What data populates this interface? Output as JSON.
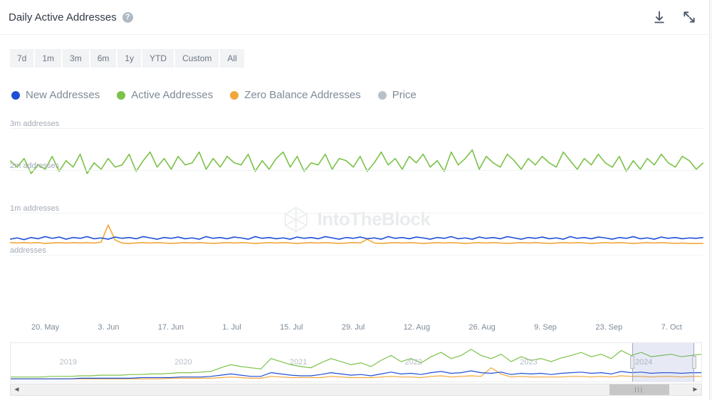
{
  "header": {
    "title": "Daily Active Addresses",
    "help_glyph": "?"
  },
  "ranges": [
    "7d",
    "1m",
    "3m",
    "6m",
    "1y",
    "YTD",
    "Custom",
    "All"
  ],
  "legend": [
    {
      "label": "New Addresses",
      "color": "#1f4fd6"
    },
    {
      "label": "Active Addresses",
      "color": "#7cc24a"
    },
    {
      "label": "Zero Balance Addresses",
      "color": "#f2a73b"
    },
    {
      "label": "Price",
      "color": "#b9c0c8"
    }
  ],
  "watermark": "IntoTheBlock",
  "chart": {
    "type": "line",
    "ylim": [
      0,
      3000000
    ],
    "y_ticks": [
      {
        "v": 0,
        "label": "addresses"
      },
      {
        "v": 1000000,
        "label": "1m addresses"
      },
      {
        "v": 2000000,
        "label": "2m addresses"
      },
      {
        "v": 3000000,
        "label": "3m addresses"
      }
    ],
    "x_labels": [
      "20. May",
      "3. Jun",
      "17. Jun",
      "1. Jul",
      "15. Jul",
      "29. Jul",
      "12. Aug",
      "26. Aug",
      "9. Sep",
      "23. Sep",
      "7. Oct"
    ],
    "background_color": "#ffffff",
    "grid_color": "#f0f2f4",
    "label_color": "#a3abb5",
    "xlabel_color": "#7d8a97",
    "line_width": 1.6,
    "series": {
      "active": {
        "color": "#7cc24a",
        "values": [
          2.25,
          2.1,
          2.3,
          1.95,
          2.15,
          2.05,
          2.35,
          2.0,
          2.25,
          2.1,
          2.4,
          1.95,
          2.2,
          2.05,
          2.3,
          2.1,
          2.15,
          2.4,
          2.0,
          2.25,
          2.45,
          2.1,
          2.3,
          2.05,
          2.35,
          2.15,
          2.2,
          2.45,
          2.05,
          2.3,
          2.1,
          2.35,
          2.2,
          2.15,
          2.4,
          2.0,
          2.25,
          2.05,
          2.3,
          2.45,
          2.1,
          2.35,
          2.0,
          2.2,
          2.15,
          2.4,
          2.05,
          2.3,
          2.25,
          2.1,
          2.35,
          2.0,
          2.2,
          2.45,
          2.15,
          2.3,
          2.05,
          2.35,
          2.2,
          2.4,
          2.1,
          2.25,
          2.0,
          2.45,
          2.15,
          2.3,
          2.5,
          2.05,
          2.35,
          2.2,
          2.1,
          2.4,
          2.25,
          2.05,
          2.3,
          2.15,
          2.35,
          2.2,
          2.1,
          2.45,
          2.25,
          2.05,
          2.3,
          2.15,
          2.4,
          2.2,
          2.1,
          2.35,
          2.0,
          2.25,
          2.05,
          2.3,
          2.15,
          2.4,
          2.2,
          2.1,
          2.35,
          2.25,
          2.05,
          2.2
        ]
      },
      "new": {
        "color": "#1f4fd6",
        "values": [
          0.42,
          0.45,
          0.41,
          0.46,
          0.43,
          0.48,
          0.44,
          0.47,
          0.42,
          0.46,
          0.44,
          0.48,
          0.43,
          0.45,
          0.42,
          0.47,
          0.44,
          0.46,
          0.43,
          0.48,
          0.45,
          0.42,
          0.46,
          0.44,
          0.47,
          0.43,
          0.45,
          0.42,
          0.48,
          0.44,
          0.46,
          0.43,
          0.47,
          0.45,
          0.42,
          0.48,
          0.44,
          0.46,
          0.43,
          0.45,
          0.42,
          0.47,
          0.44,
          0.46,
          0.43,
          0.48,
          0.45,
          0.42,
          0.46,
          0.44,
          0.47,
          0.43,
          0.45,
          0.42,
          0.48,
          0.44,
          0.46,
          0.43,
          0.47,
          0.45,
          0.42,
          0.46,
          0.44,
          0.48,
          0.43,
          0.45,
          0.42,
          0.47,
          0.44,
          0.46,
          0.43,
          0.48,
          0.45,
          0.42,
          0.46,
          0.44,
          0.47,
          0.43,
          0.45,
          0.42,
          0.48,
          0.44,
          0.46,
          0.43,
          0.47,
          0.45,
          0.42,
          0.46,
          0.44,
          0.48,
          0.43,
          0.45,
          0.42,
          0.47,
          0.44,
          0.46,
          0.43,
          0.45,
          0.44,
          0.46
        ]
      },
      "zero": {
        "color": "#f2a73b",
        "values": [
          0.34,
          0.33,
          0.34,
          0.33,
          0.34,
          0.32,
          0.33,
          0.34,
          0.33,
          0.34,
          0.33,
          0.34,
          0.33,
          0.35,
          0.75,
          0.4,
          0.33,
          0.32,
          0.33,
          0.34,
          0.33,
          0.34,
          0.33,
          0.32,
          0.33,
          0.34,
          0.33,
          0.34,
          0.33,
          0.32,
          0.33,
          0.34,
          0.33,
          0.34,
          0.33,
          0.32,
          0.33,
          0.34,
          0.33,
          0.34,
          0.33,
          0.32,
          0.33,
          0.34,
          0.33,
          0.34,
          0.33,
          0.32,
          0.33,
          0.34,
          0.33,
          0.42,
          0.33,
          0.32,
          0.33,
          0.34,
          0.33,
          0.34,
          0.33,
          0.32,
          0.33,
          0.34,
          0.33,
          0.34,
          0.33,
          0.32,
          0.33,
          0.34,
          0.33,
          0.34,
          0.33,
          0.32,
          0.33,
          0.34,
          0.33,
          0.34,
          0.33,
          0.32,
          0.33,
          0.34,
          0.33,
          0.34,
          0.33,
          0.32,
          0.33,
          0.34,
          0.33,
          0.34,
          0.33,
          0.32,
          0.33,
          0.34,
          0.33,
          0.34,
          0.33,
          0.32,
          0.33,
          0.32,
          0.32,
          0.32
        ]
      }
    }
  },
  "navigator": {
    "x_labels": [
      "2019",
      "2020",
      "2021",
      "2022",
      "2023",
      "2024"
    ],
    "window": {
      "left_pct": 90,
      "width_pct": 9
    },
    "series": {
      "active": {
        "color": "#7cc24a",
        "values": [
          0.05,
          0.05,
          0.05,
          0.05,
          0.06,
          0.06,
          0.06,
          0.07,
          0.07,
          0.08,
          0.08,
          0.08,
          0.09,
          0.09,
          0.1,
          0.1,
          0.11,
          0.12,
          0.12,
          0.13,
          0.14,
          0.2,
          0.25,
          0.22,
          0.2,
          0.18,
          0.35,
          0.3,
          0.25,
          0.22,
          0.2,
          0.28,
          0.35,
          0.3,
          0.25,
          0.28,
          0.22,
          0.32,
          0.4,
          0.3,
          0.35,
          0.28,
          0.38,
          0.45,
          0.35,
          0.4,
          0.5,
          0.4,
          0.35,
          0.42,
          0.3,
          0.38,
          0.32,
          0.35,
          0.3,
          0.36,
          0.4,
          0.45,
          0.38,
          0.42,
          0.35,
          0.48,
          0.4,
          0.45,
          0.38,
          0.4,
          0.42,
          0.38,
          0.4,
          0.42
        ]
      },
      "new": {
        "color": "#1f4fd6",
        "values": [
          0.02,
          0.02,
          0.02,
          0.02,
          0.02,
          0.02,
          0.02,
          0.03,
          0.03,
          0.03,
          0.03,
          0.03,
          0.03,
          0.04,
          0.04,
          0.04,
          0.04,
          0.05,
          0.05,
          0.05,
          0.06,
          0.08,
          0.1,
          0.08,
          0.06,
          0.06,
          0.12,
          0.1,
          0.08,
          0.07,
          0.07,
          0.09,
          0.12,
          0.1,
          0.08,
          0.09,
          0.07,
          0.1,
          0.13,
          0.1,
          0.11,
          0.09,
          0.12,
          0.14,
          0.11,
          0.12,
          0.15,
          0.12,
          0.11,
          0.13,
          0.09,
          0.11,
          0.1,
          0.11,
          0.09,
          0.11,
          0.12,
          0.13,
          0.11,
          0.12,
          0.1,
          0.14,
          0.12,
          0.13,
          0.11,
          0.12,
          0.12,
          0.11,
          0.12,
          0.12
        ]
      },
      "zero": {
        "color": "#f2a73b",
        "values": [
          0.02,
          0.02,
          0.02,
          0.02,
          0.02,
          0.02,
          0.02,
          0.02,
          0.02,
          0.02,
          0.02,
          0.02,
          0.02,
          0.02,
          0.02,
          0.02,
          0.03,
          0.03,
          0.03,
          0.03,
          0.03,
          0.04,
          0.05,
          0.04,
          0.03,
          0.03,
          0.06,
          0.05,
          0.04,
          0.04,
          0.04,
          0.04,
          0.06,
          0.05,
          0.04,
          0.04,
          0.04,
          0.05,
          0.06,
          0.05,
          0.05,
          0.04,
          0.06,
          0.07,
          0.05,
          0.06,
          0.07,
          0.06,
          0.2,
          0.1,
          0.05,
          0.06,
          0.05,
          0.05,
          0.05,
          0.05,
          0.06,
          0.06,
          0.05,
          0.06,
          0.05,
          0.07,
          0.06,
          0.06,
          0.05,
          0.06,
          0.06,
          0.05,
          0.06,
          0.06
        ]
      }
    }
  },
  "scrollbar": {
    "thumb_left_pct": 88,
    "thumb_width_pct": 9
  }
}
